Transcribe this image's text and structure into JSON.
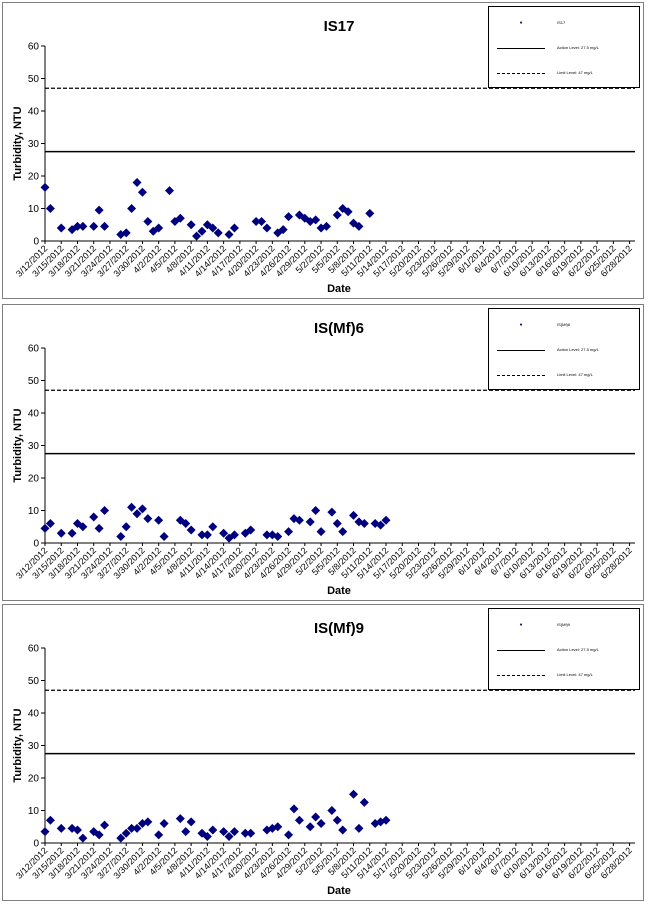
{
  "chart_data": [
    {
      "type": "scatter",
      "title": "IS17",
      "xlabel": "Date",
      "ylabel": "Turbidity, NTU",
      "ylim": [
        0,
        60
      ],
      "yticks": [
        0,
        10,
        20,
        30,
        40,
        50,
        60
      ],
      "x_tick_labels": [
        "3/12/2012",
        "3/15/2012",
        "3/18/2012",
        "3/21/2012",
        "3/24/2012",
        "3/27/2012",
        "3/30/2012",
        "4/2/2012",
        "4/5/2012",
        "4/8/2012",
        "4/11/2012",
        "4/14/2012",
        "4/17/2012",
        "4/20/2012",
        "4/23/2012",
        "4/26/2012",
        "4/29/2012",
        "5/2/2012",
        "5/5/2012",
        "5/8/2012",
        "5/11/2012",
        "5/14/2012",
        "5/17/2012",
        "5/20/2012",
        "5/23/2012",
        "5/26/2012",
        "5/29/2012",
        "6/1/2012",
        "6/4/2012",
        "6/7/2012",
        "6/10/2012",
        "6/13/2012",
        "6/16/2012",
        "6/19/2012",
        "6/22/2012",
        "6/25/2012",
        "6/28/2012"
      ],
      "xlim": [
        "2012-03-12",
        "2012-06-29"
      ],
      "legend_position": "top-right",
      "legend": [
        {
          "label": "IS17",
          "style": "marker"
        },
        {
          "label": "Action Level: 27.5 mg/L",
          "style": "solid"
        },
        {
          "label": "Limit Level: 47 mg/L",
          "style": "dashed"
        }
      ],
      "action_level": 27.5,
      "limit_level": 47,
      "series": [
        {
          "name": "IS17",
          "marker": "diamond",
          "color": "#00007f",
          "points": [
            [
              "2012-03-12",
              16.5
            ],
            [
              "2012-03-13",
              10
            ],
            [
              "2012-03-15",
              4
            ],
            [
              "2012-03-17",
              3.5
            ],
            [
              "2012-03-18",
              4.5
            ],
            [
              "2012-03-19",
              4.5
            ],
            [
              "2012-03-21",
              4.5
            ],
            [
              "2012-03-22",
              9.5
            ],
            [
              "2012-03-23",
              4.5
            ],
            [
              "2012-03-26",
              2
            ],
            [
              "2012-03-27",
              2.5
            ],
            [
              "2012-03-28",
              10
            ],
            [
              "2012-03-29",
              18
            ],
            [
              "2012-03-30",
              15
            ],
            [
              "2012-03-31",
              6
            ],
            [
              "2012-04-01",
              3
            ],
            [
              "2012-04-02",
              4
            ],
            [
              "2012-04-04",
              15.5
            ],
            [
              "2012-04-05",
              6
            ],
            [
              "2012-04-06",
              7
            ],
            [
              "2012-04-08",
              5
            ],
            [
              "2012-04-09",
              1.5
            ],
            [
              "2012-04-10",
              3
            ],
            [
              "2012-04-11",
              5
            ],
            [
              "2012-04-12",
              4
            ],
            [
              "2012-04-13",
              2.5
            ],
            [
              "2012-04-15",
              2
            ],
            [
              "2012-04-16",
              4
            ],
            [
              "2012-04-20",
              6
            ],
            [
              "2012-04-21",
              6
            ],
            [
              "2012-04-22",
              4
            ],
            [
              "2012-04-24",
              2.5
            ],
            [
              "2012-04-25",
              3.5
            ],
            [
              "2012-04-26",
              7.5
            ],
            [
              "2012-04-28",
              8
            ],
            [
              "2012-04-29",
              7
            ],
            [
              "2012-04-30",
              6
            ],
            [
              "2012-05-01",
              6.5
            ],
            [
              "2012-05-02",
              4
            ],
            [
              "2012-05-03",
              4.5
            ],
            [
              "2012-05-05",
              8
            ],
            [
              "2012-05-06",
              10
            ],
            [
              "2012-05-07",
              9
            ],
            [
              "2012-05-08",
              5.5
            ],
            [
              "2012-05-09",
              4.5
            ],
            [
              "2012-05-11",
              8.5
            ]
          ]
        }
      ]
    },
    {
      "type": "scatter",
      "title": "IS(Mf)6",
      "xlabel": "Date",
      "ylabel": "Turbidity, NTU",
      "ylim": [
        0,
        60
      ],
      "yticks": [
        0,
        10,
        20,
        30,
        40,
        50,
        60
      ],
      "x_tick_labels": [
        "3/12/2012",
        "3/15/2012",
        "3/18/2012",
        "3/21/2012",
        "3/24/2012",
        "3/27/2012",
        "3/30/2012",
        "4/2/2012",
        "4/5/2012",
        "4/8/2012",
        "4/11/2012",
        "4/14/2012",
        "4/17/2012",
        "4/20/2012",
        "4/23/2012",
        "4/26/2012",
        "4/29/2012",
        "5/2/2012",
        "5/5/2012",
        "5/8/2012",
        "5/11/2012",
        "5/14/2012",
        "5/17/2012",
        "5/20/2012",
        "5/23/2012",
        "5/26/2012",
        "5/29/2012",
        "6/1/2012",
        "6/4/2012",
        "6/7/2012",
        "6/10/2012",
        "6/13/2012",
        "6/16/2012",
        "6/19/2012",
        "6/22/2012",
        "6/25/2012",
        "6/28/2012"
      ],
      "xlim": [
        "2012-03-12",
        "2012-06-29"
      ],
      "legend_position": "top-right",
      "legend": [
        {
          "label": "IS(Mf)6",
          "style": "marker"
        },
        {
          "label": "Action Level: 27.5 mg/L",
          "style": "solid"
        },
        {
          "label": "Limit Level: 47 mg/L",
          "style": "dashed"
        }
      ],
      "action_level": 27.5,
      "limit_level": 47,
      "series": [
        {
          "name": "IS(Mf)6",
          "marker": "diamond",
          "color": "#00007f",
          "points": [
            [
              "2012-03-12",
              4.5
            ],
            [
              "2012-03-13",
              6
            ],
            [
              "2012-03-15",
              3
            ],
            [
              "2012-03-17",
              3
            ],
            [
              "2012-03-18",
              6
            ],
            [
              "2012-03-19",
              5
            ],
            [
              "2012-03-21",
              8
            ],
            [
              "2012-03-22",
              4.5
            ],
            [
              "2012-03-23",
              10
            ],
            [
              "2012-03-26",
              2
            ],
            [
              "2012-03-27",
              5
            ],
            [
              "2012-03-28",
              11
            ],
            [
              "2012-03-29",
              9
            ],
            [
              "2012-03-30",
              10.5
            ],
            [
              "2012-03-31",
              7.5
            ],
            [
              "2012-04-02",
              7
            ],
            [
              "2012-04-03",
              2
            ],
            [
              "2012-04-06",
              7
            ],
            [
              "2012-04-07",
              6
            ],
            [
              "2012-04-08",
              4
            ],
            [
              "2012-04-10",
              2.5
            ],
            [
              "2012-04-11",
              2.5
            ],
            [
              "2012-04-12",
              5
            ],
            [
              "2012-04-14",
              3
            ],
            [
              "2012-04-15",
              1.5
            ],
            [
              "2012-04-16",
              2.5
            ],
            [
              "2012-04-18",
              3
            ],
            [
              "2012-04-19",
              4
            ],
            [
              "2012-04-22",
              2.5
            ],
            [
              "2012-04-23",
              2.5
            ],
            [
              "2012-04-24",
              2
            ],
            [
              "2012-04-26",
              3.5
            ],
            [
              "2012-04-27",
              7.5
            ],
            [
              "2012-04-28",
              7
            ],
            [
              "2012-04-30",
              6.5
            ],
            [
              "2012-05-01",
              10
            ],
            [
              "2012-05-02",
              3.5
            ],
            [
              "2012-05-04",
              9.5
            ],
            [
              "2012-05-05",
              6
            ],
            [
              "2012-05-06",
              3.5
            ],
            [
              "2012-05-08",
              8.5
            ],
            [
              "2012-05-09",
              6.5
            ],
            [
              "2012-05-10",
              6
            ],
            [
              "2012-05-12",
              6
            ],
            [
              "2012-05-13",
              5.5
            ],
            [
              "2012-05-14",
              7
            ]
          ]
        }
      ]
    },
    {
      "type": "scatter",
      "title": "IS(Mf)9",
      "xlabel": "Date",
      "ylabel": "Turbidity, NTU",
      "ylim": [
        0,
        60
      ],
      "yticks": [
        0,
        10,
        20,
        30,
        40,
        50,
        60
      ],
      "x_tick_labels": [
        "3/12/2012",
        "3/15/2012",
        "3/18/2012",
        "3/21/2012",
        "3/24/2012",
        "3/27/2012",
        "3/30/2012",
        "4/2/2012",
        "4/5/2012",
        "4/8/2012",
        "4/11/2012",
        "4/14/2012",
        "4/17/2012",
        "4/20/2012",
        "4/23/2012",
        "4/26/2012",
        "4/29/2012",
        "5/2/2012",
        "5/5/2012",
        "5/8/2012",
        "5/11/2012",
        "5/14/2012",
        "5/17/2012",
        "5/20/2012",
        "5/23/2012",
        "5/26/2012",
        "5/29/2012",
        "6/1/2012",
        "6/4/2012",
        "6/7/2012",
        "6/10/2012",
        "6/13/2012",
        "6/16/2012",
        "6/19/2012",
        "6/22/2012",
        "6/25/2012",
        "6/28/2012"
      ],
      "xlim": [
        "2012-03-12",
        "2012-06-29"
      ],
      "legend_position": "top-right",
      "legend": [
        {
          "label": "IS(Mf)9",
          "style": "marker"
        },
        {
          "label": "Action Level: 27.5 mg/L",
          "style": "solid"
        },
        {
          "label": "Limit Level: 47 mg/L",
          "style": "dashed"
        }
      ],
      "action_level": 27.5,
      "limit_level": 47,
      "series": [
        {
          "name": "IS(Mf)9",
          "marker": "diamond",
          "color": "#00007f",
          "points": [
            [
              "2012-03-12",
              3.5
            ],
            [
              "2012-03-13",
              7
            ],
            [
              "2012-03-15",
              4.5
            ],
            [
              "2012-03-17",
              4.5
            ],
            [
              "2012-03-18",
              4
            ],
            [
              "2012-03-19",
              1.5
            ],
            [
              "2012-03-21",
              3.5
            ],
            [
              "2012-03-22",
              2.5
            ],
            [
              "2012-03-23",
              5.5
            ],
            [
              "2012-03-26",
              1.5
            ],
            [
              "2012-03-27",
              3
            ],
            [
              "2012-03-28",
              4.5
            ],
            [
              "2012-03-29",
              4.5
            ],
            [
              "2012-03-30",
              6
            ],
            [
              "2012-03-31",
              6.5
            ],
            [
              "2012-04-02",
              2.5
            ],
            [
              "2012-04-03",
              6
            ],
            [
              "2012-04-06",
              7.5
            ],
            [
              "2012-04-07",
              3.5
            ],
            [
              "2012-04-08",
              6.5
            ],
            [
              "2012-04-10",
              3
            ],
            [
              "2012-04-11",
              2
            ],
            [
              "2012-04-12",
              4
            ],
            [
              "2012-04-14",
              3.5
            ],
            [
              "2012-04-15",
              2
            ],
            [
              "2012-04-16",
              3.5
            ],
            [
              "2012-04-18",
              3
            ],
            [
              "2012-04-19",
              3
            ],
            [
              "2012-04-22",
              4
            ],
            [
              "2012-04-23",
              4.5
            ],
            [
              "2012-04-24",
              5
            ],
            [
              "2012-04-26",
              2.5
            ],
            [
              "2012-04-27",
              10.5
            ],
            [
              "2012-04-28",
              7
            ],
            [
              "2012-04-30",
              5
            ],
            [
              "2012-05-01",
              8
            ],
            [
              "2012-05-02",
              6
            ],
            [
              "2012-05-04",
              10
            ],
            [
              "2012-05-05",
              7
            ],
            [
              "2012-05-06",
              4
            ],
            [
              "2012-05-08",
              15
            ],
            [
              "2012-05-09",
              4.5
            ],
            [
              "2012-05-10",
              12.5
            ],
            [
              "2012-05-12",
              6
            ],
            [
              "2012-05-13",
              6.5
            ],
            [
              "2012-05-14",
              7
            ]
          ]
        }
      ]
    }
  ]
}
